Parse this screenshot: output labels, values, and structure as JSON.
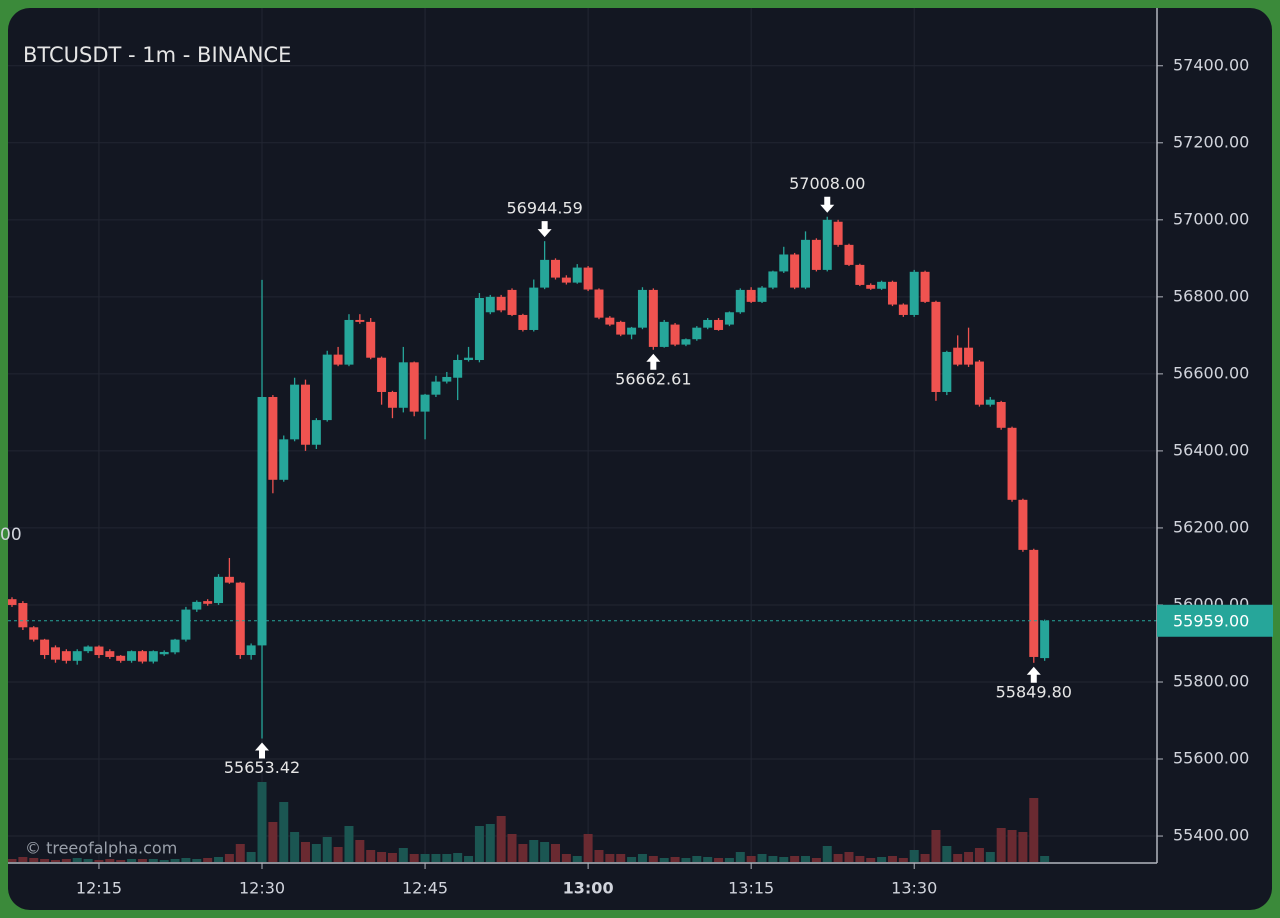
{
  "chart_data": {
    "type": "candlestick",
    "title": "BTCUSDT - 1m - BINANCE",
    "watermark": "© treeofalpha.com",
    "clipped_label": "00",
    "x": [
      "12:07",
      "12:08",
      "12:09",
      "12:10",
      "12:11",
      "12:12",
      "12:13",
      "12:14",
      "12:15",
      "12:16",
      "12:17",
      "12:18",
      "12:19",
      "12:20",
      "12:21",
      "12:22",
      "12:23",
      "12:24",
      "12:25",
      "12:26",
      "12:27",
      "12:28",
      "12:29",
      "12:30",
      "12:31",
      "12:32",
      "12:33",
      "12:34",
      "12:35",
      "12:36",
      "12:37",
      "12:38",
      "12:39",
      "12:40",
      "12:41",
      "12:42",
      "12:43",
      "12:44",
      "12:45",
      "12:46",
      "12:47",
      "12:48",
      "12:49",
      "12:50",
      "12:51",
      "12:52",
      "12:53",
      "12:54",
      "12:55",
      "12:56",
      "12:57",
      "12:58",
      "12:59",
      "13:00",
      "13:01",
      "13:02",
      "13:03",
      "13:04",
      "13:05",
      "13:06",
      "13:07",
      "13:08",
      "13:09",
      "13:10",
      "13:11",
      "13:12",
      "13:13",
      "13:14",
      "13:15",
      "13:16",
      "13:17",
      "13:18",
      "13:19",
      "13:20",
      "13:21",
      "13:22",
      "13:23",
      "13:24",
      "13:25",
      "13:26",
      "13:27",
      "13:28",
      "13:29",
      "13:30",
      "13:31",
      "13:32",
      "13:33",
      "13:34",
      "13:35",
      "13:36",
      "13:37",
      "13:38",
      "13:39",
      "13:40",
      "13:41",
      "13:42"
    ],
    "open": [
      56015,
      56005,
      55942,
      55910,
      55890,
      55880,
      55855,
      55880,
      55892,
      55880,
      55868,
      55855,
      55880,
      55853,
      55872,
      55877,
      55910,
      55988,
      56010,
      56005,
      56073,
      56058,
      55870,
      55895,
      56540,
      56325,
      56430,
      56572,
      56416,
      56480,
      56650,
      56624,
      56740,
      56735,
      56642,
      56553,
      56512,
      56630,
      56502,
      56546,
      56580,
      56590,
      56636,
      56636,
      56760,
      56800,
      56818,
      56753,
      56714,
      56824,
      56896,
      56850,
      56837,
      56876,
      56819,
      56746,
      56735,
      56702,
      56720,
      56818,
      56670,
      56728,
      56676,
      56690,
      56720,
      56740,
      56728,
      56760,
      56818,
      56787,
      56824,
      56866,
      56910,
      56824,
      56948,
      56870,
      56995,
      56935,
      56883,
      56831,
      56821,
      56839,
      56780,
      56753,
      56865,
      56787,
      56553,
      56668,
      56668,
      56632,
      56520,
      56527,
      56460,
      56273,
      56143,
      55862
    ],
    "high": [
      56020,
      56010,
      55945,
      55912,
      55895,
      55885,
      55885,
      55895,
      55895,
      55885,
      55870,
      55882,
      55883,
      55882,
      55882,
      55912,
      55995,
      56012,
      56015,
      56080,
      56122,
      56060,
      55900,
      56844,
      56545,
      56440,
      56590,
      56585,
      56485,
      56660,
      56670,
      56755,
      56755,
      56745,
      56645,
      56556,
      56670,
      56632,
      56548,
      56595,
      56605,
      56650,
      56670,
      56810,
      56805,
      56805,
      56822,
      56756,
      56845,
      56944.59,
      56900,
      56856,
      56885,
      56880,
      56822,
      56750,
      56738,
      56722,
      56825,
      56822,
      56740,
      56732,
      56692,
      56724,
      56745,
      56745,
      56762,
      56822,
      56825,
      56828,
      56868,
      56930,
      56914,
      56970,
      56952,
      57008,
      57000,
      56938,
      56886,
      56835,
      56842,
      56842,
      56783,
      56870,
      56868,
      56790,
      56660,
      56700,
      56720,
      56636,
      56540,
      56530,
      56463,
      56276,
      56146,
      55962
    ],
    "low": [
      55995,
      55935,
      55905,
      55860,
      55850,
      55848,
      55845,
      55875,
      55862,
      55860,
      55850,
      55850,
      55848,
      55848,
      55868,
      55872,
      55905,
      55982,
      55998,
      56000,
      56055,
      55860,
      55858,
      55653.42,
      56290,
      56320,
      56425,
      56400,
      56405,
      56476,
      56620,
      56620,
      56730,
      56638,
      56520,
      56485,
      56500,
      56490,
      56430,
      56540,
      56575,
      56532,
      56632,
      56630,
      56755,
      56760,
      56750,
      56710,
      56710,
      56820,
      56845,
      56832,
      56834,
      56815,
      56742,
      56724,
      56698,
      56690,
      56716,
      56662.61,
      56668,
      56672,
      56672,
      56686,
      56716,
      56712,
      56724,
      56756,
      56784,
      56784,
      56820,
      56862,
      56820,
      56820,
      56866,
      56866,
      56930,
      56880,
      56828,
      56818,
      56818,
      56776,
      56748,
      56748,
      56784,
      56530,
      56545,
      56620,
      56618,
      56515,
      56515,
      56455,
      56268,
      56138,
      55849.8,
      55855
    ],
    "close": [
      56000,
      55942,
      55910,
      55870,
      55858,
      55855,
      55880,
      55892,
      55870,
      55865,
      55855,
      55880,
      55853,
      55880,
      55878,
      55910,
      55988,
      56008,
      56003,
      56073,
      56058,
      55870,
      55895,
      56540,
      56325,
      56430,
      56572,
      56416,
      56480,
      56650,
      56624,
      56740,
      56735,
      56642,
      56553,
      56512,
      56630,
      56502,
      56546,
      56580,
      56592,
      56636,
      56642,
      56797,
      56800,
      56765,
      56753,
      56714,
      56824,
      56896,
      56850,
      56837,
      56876,
      56819,
      56746,
      56728,
      56702,
      56720,
      56818,
      56670,
      56735,
      56676,
      56690,
      56720,
      56740,
      56714,
      56760,
      56818,
      56787,
      56824,
      56866,
      56910,
      56824,
      56948,
      56870,
      57000,
      56935,
      56883,
      56831,
      56821,
      56839,
      56780,
      56753,
      56865,
      56787,
      56553,
      56657,
      56624,
      56624,
      56520,
      56533,
      56460,
      56273,
      56143,
      55865,
      55959
    ],
    "volume": [
      3,
      5,
      4,
      3,
      2,
      3,
      4,
      3,
      2,
      3,
      2,
      3,
      3,
      3,
      2,
      3,
      4,
      3,
      4,
      5,
      8,
      18,
      10,
      80,
      40,
      60,
      30,
      20,
      18,
      25,
      15,
      36,
      22,
      12,
      10,
      9,
      14,
      8,
      8,
      8,
      8,
      9,
      6,
      36,
      38,
      46,
      28,
      18,
      22,
      20,
      18,
      8,
      6,
      28,
      12,
      8,
      8,
      5,
      8,
      6,
      4,
      5,
      4,
      6,
      5,
      4,
      4,
      10,
      6,
      8,
      6,
      5,
      6,
      6,
      4,
      16,
      8,
      10,
      6,
      4,
      5,
      6,
      4,
      12,
      8,
      32,
      16,
      8,
      10,
      14,
      10,
      34,
      32,
      30,
      64,
      6
    ],
    "volume_lim": [
      0,
      200
    ],
    "up_color": "#26a69a",
    "down_color": "#ef5350",
    "volume_up_color": "#1b5652",
    "volume_down_color": "#6a2a31",
    "ylim": [
      55330,
      57550
    ],
    "yticks": [
      {
        "value": 55400,
        "label": "55400.00"
      },
      {
        "value": 55600,
        "label": "55600.00"
      },
      {
        "value": 55800,
        "label": "55800.00"
      },
      {
        "value": 56000,
        "label": "56000.00"
      },
      {
        "value": 56200,
        "label": "56200.00"
      },
      {
        "value": 56400,
        "label": "56400.00"
      },
      {
        "value": 56600,
        "label": "56600.00"
      },
      {
        "value": 56800,
        "label": "56800.00"
      },
      {
        "value": 57000,
        "label": "57000.00"
      },
      {
        "value": 57200,
        "label": "57200.00"
      },
      {
        "value": 57400,
        "label": "57400.00"
      }
    ],
    "xticks": [
      "12:15",
      "12:30",
      "12:45",
      "13:00",
      "13:15",
      "13:30"
    ],
    "grid": true,
    "last_price": {
      "value": 55959,
      "label": "55959.00"
    },
    "annotations": [
      {
        "x": "12:30",
        "value": 55653.42,
        "label": "55653.42",
        "position": "below"
      },
      {
        "x": "12:56",
        "value": 56944.59,
        "label": "56944.59",
        "position": "above"
      },
      {
        "x": "13:06",
        "value": 56662.61,
        "label": "56662.61",
        "position": "below"
      },
      {
        "x": "13:22",
        "value": 57008,
        "label": "57008.00",
        "position": "above"
      },
      {
        "x": "13:41",
        "value": 55849.8,
        "label": "55849.80",
        "position": "below"
      }
    ]
  }
}
